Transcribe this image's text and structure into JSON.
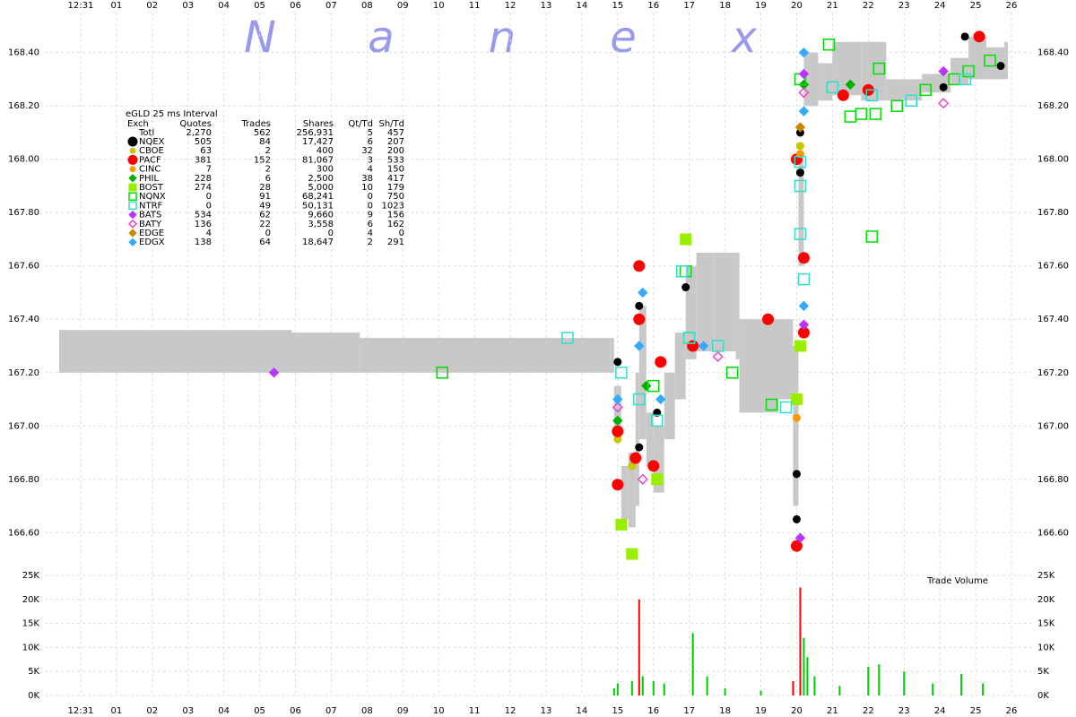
{
  "watermark": [
    "N",
    "a",
    "n",
    "e",
    "x"
  ],
  "table": {
    "title": "eGLD 25 ms Interval",
    "columns": [
      "Exch",
      "Quotes",
      "Trades",
      "Shares",
      "Qt/Td",
      "Sh/Td"
    ],
    "total": [
      "Totl",
      "2,270",
      "562",
      "256,931",
      "5",
      "457"
    ]
  },
  "chart_data": [
    {
      "type": "scatter",
      "xticks": [
        {
          "value": 0,
          "label": "12:31"
        },
        {
          "value": 1,
          "label": "01"
        },
        {
          "value": 2,
          "label": "02"
        },
        {
          "value": 3,
          "label": "03"
        },
        {
          "value": 4,
          "label": "04"
        },
        {
          "value": 5,
          "label": "05"
        },
        {
          "value": 6,
          "label": "06"
        },
        {
          "value": 7,
          "label": "07"
        },
        {
          "value": 8,
          "label": "08"
        },
        {
          "value": 9,
          "label": "09"
        },
        10,
        11,
        12,
        13,
        14,
        15,
        16,
        17,
        18,
        19,
        20,
        21,
        22,
        23,
        24,
        25,
        26
      ],
      "xlim": [
        -1,
        26.55
      ],
      "ylim": [
        166.48,
        168.53
      ],
      "yticks": [
        {
          "value": 166.6,
          "label": "166.60"
        },
        {
          "value": 166.8,
          "label": "166.80"
        },
        {
          "value": 167,
          "label": "167.00"
        },
        {
          "value": 167.2,
          "label": "167.20"
        },
        {
          "value": 167.4,
          "label": "167.40"
        },
        {
          "value": 167.6,
          "label": "167.60"
        },
        {
          "value": 167.8,
          "label": "167.80"
        },
        {
          "value": 168,
          "label": "168.00"
        },
        {
          "value": 168.2,
          "label": "168.20"
        },
        {
          "value": 168.4,
          "label": "168.40"
        }
      ],
      "grid": true,
      "band": {
        "color": "#c8c8c8",
        "x": [
          -0.6,
          5.9,
          7.8,
          14.8,
          14.9,
          15.1,
          15.3,
          15.5,
          15.6,
          15.8,
          16.0,
          16.3,
          16.6,
          16.9,
          17.2,
          17.7,
          18.3,
          18.4,
          19.5,
          19.9,
          20.05,
          20.2,
          20.6,
          21.0,
          21.8,
          22.5,
          23.5,
          24.3,
          24.8,
          25.3,
          25.8
        ],
        "lower": [
          167.2,
          167.2,
          167.2,
          167.2,
          166.95,
          166.65,
          166.62,
          166.7,
          166.95,
          166.85,
          166.75,
          166.95,
          167.1,
          167.25,
          167.28,
          167.28,
          167.25,
          167.05,
          167.1,
          166.7,
          167.6,
          168.2,
          168.22,
          168.24,
          168.22,
          168.22,
          168.25,
          168.28,
          168.3,
          168.3,
          168.3
        ],
        "upper": [
          167.36,
          167.35,
          167.33,
          167.33,
          167.15,
          166.85,
          166.9,
          167.2,
          167.45,
          167.05,
          167.0,
          167.2,
          167.35,
          167.6,
          167.65,
          167.65,
          167.65,
          167.4,
          167.4,
          167.3,
          168.0,
          168.4,
          168.36,
          168.44,
          168.44,
          168.3,
          168.32,
          168.38,
          168.46,
          168.42,
          168.44
        ]
      },
      "series": [
        {
          "name": "NQEX",
          "color": "#000000",
          "marker": "circle",
          "filled": true,
          "stats": [
            "505",
            "84",
            "17,427",
            "6",
            "207"
          ],
          "x": [
            15.0,
            15.6,
            15.6,
            16.1,
            16.9,
            20.0,
            20.0,
            20.1,
            20.1,
            24.1,
            25.7,
            24.7
          ],
          "values": [
            167.24,
            167.45,
            166.92,
            167.05,
            167.52,
            166.82,
            166.65,
            168.1,
            167.95,
            168.27,
            168.35,
            168.46
          ]
        },
        {
          "name": "CBOE",
          "color": "#c8c800",
          "marker": "circle",
          "filled": true,
          "stats": [
            "63",
            "2",
            "400",
            "32",
            "200"
          ],
          "x": [
            15.0,
            15.4,
            20.1
          ],
          "values": [
            166.95,
            166.85,
            168.05
          ]
        },
        {
          "name": "PACF",
          "color": "#ff0000",
          "marker": "circle",
          "filled": true,
          "stats": [
            "381",
            "152",
            "81,067",
            "3",
            "533"
          ],
          "x": [
            15.0,
            15.0,
            15.6,
            15.6,
            15.5,
            16.0,
            16.2,
            17.1,
            19.2,
            20.0,
            20.0,
            20.2,
            20.2,
            21.3,
            22.0,
            25.1
          ],
          "values": [
            166.98,
            166.78,
            167.6,
            167.4,
            166.88,
            166.85,
            167.24,
            167.3,
            167.4,
            168.0,
            166.55,
            167.63,
            167.35,
            168.24,
            168.26,
            168.46
          ]
        },
        {
          "name": "CINC",
          "color": "#ff9900",
          "marker": "circle",
          "filled": true,
          "stats": [
            "7",
            "2",
            "300",
            "4",
            "150"
          ],
          "x": [
            20.0,
            20.1
          ],
          "values": [
            167.03,
            168.02
          ]
        },
        {
          "name": "PHIL",
          "color": "#00b000",
          "marker": "diamond",
          "filled": true,
          "stats": [
            "228",
            "6",
            "2,500",
            "38",
            "417"
          ],
          "x": [
            15.0,
            15.8,
            20.2,
            21.5
          ],
          "values": [
            167.02,
            167.15,
            168.28,
            168.28
          ]
        },
        {
          "name": "BOST",
          "color": "#99ee00",
          "marker": "square",
          "filled": true,
          "stats": [
            "274",
            "28",
            "5,000",
            "10",
            "179"
          ],
          "x": [
            15.1,
            15.4,
            16.1,
            16.9,
            20.0,
            20.1
          ],
          "values": [
            166.63,
            166.52,
            166.8,
            167.7,
            167.1,
            167.3
          ]
        },
        {
          "name": "NQNX",
          "color": "#00dd00",
          "marker": "square",
          "filled": false,
          "stats": [
            "0",
            "91",
            "68,241",
            "0",
            "750"
          ],
          "x": [
            10.1,
            16.0,
            16.9,
            17.0,
            18.2,
            19.3,
            20.1,
            20.9,
            21.8,
            22.1,
            22.2,
            22.8,
            23.6,
            24.4,
            24.8,
            25.4,
            22.3,
            21.5
          ],
          "values": [
            167.2,
            167.15,
            167.58,
            167.33,
            167.2,
            167.08,
            168.3,
            168.43,
            168.17,
            167.71,
            168.17,
            168.2,
            168.26,
            168.3,
            168.33,
            168.37,
            168.34,
            168.16
          ]
        },
        {
          "name": "NTRF",
          "color": "#33ddcc",
          "marker": "square",
          "filled": false,
          "stats": [
            "0",
            "49",
            "50,131",
            "0",
            "1023"
          ],
          "x": [
            13.6,
            15.1,
            15.6,
            16.1,
            16.8,
            17.0,
            17.8,
            19.7,
            20.1,
            20.1,
            20.2,
            20.1,
            21.0,
            22.1,
            23.2,
            24.7
          ],
          "values": [
            167.33,
            167.2,
            167.1,
            167.02,
            167.58,
            167.33,
            167.3,
            167.07,
            167.9,
            167.72,
            167.55,
            167.99,
            168.27,
            168.24,
            168.22,
            168.3
          ]
        },
        {
          "name": "BATS",
          "color": "#bb33ff",
          "marker": "diamond",
          "filled": true,
          "stats": [
            "534",
            "62",
            "9,660",
            "9",
            "156"
          ],
          "x": [
            5.4,
            20.1,
            20.2,
            20.2,
            24.1
          ],
          "values": [
            167.2,
            166.58,
            167.38,
            168.32,
            168.33
          ]
        },
        {
          "name": "BATY",
          "color": "#ee44cc",
          "marker": "diamond",
          "filled": false,
          "stats": [
            "136",
            "22",
            "3,558",
            "6",
            "162"
          ],
          "x": [
            15.0,
            15.7,
            17.8,
            20.2,
            24.1
          ],
          "values": [
            167.07,
            166.8,
            167.26,
            168.25,
            168.21
          ]
        },
        {
          "name": "EDGE",
          "color": "#cc8800",
          "marker": "diamond",
          "filled": true,
          "stats": [
            "4",
            "0",
            "0",
            "4",
            "0"
          ],
          "x": [
            20.1
          ],
          "values": [
            168.12
          ]
        },
        {
          "name": "EDGX",
          "color": "#33aaff",
          "marker": "diamond",
          "filled": true,
          "stats": [
            "138",
            "64",
            "18,647",
            "2",
            "291"
          ],
          "x": [
            15.0,
            15.6,
            15.7,
            16.2,
            17.4,
            20.2,
            20.2,
            20.2
          ],
          "values": [
            167.1,
            167.3,
            167.5,
            167.1,
            167.3,
            168.4,
            168.18,
            167.45
          ]
        }
      ]
    },
    {
      "type": "bar",
      "annotation": "Trade Volume",
      "ylim": [
        0,
        25000
      ],
      "yticks": [
        {
          "value": 0,
          "label": "0K"
        },
        {
          "value": 5000,
          "label": "5K"
        },
        {
          "value": 10000,
          "label": "10K"
        },
        {
          "value": 15000,
          "label": "15K"
        },
        {
          "value": 20000,
          "label": "20K"
        },
        {
          "value": 25000,
          "label": "25K"
        }
      ],
      "series": [
        {
          "color": "#00cc00",
          "x": [
            14.9,
            15.0,
            15.4,
            15.7,
            16.0,
            16.3,
            17.1,
            17.5,
            18.0,
            19.0,
            20.2,
            20.3,
            20.5,
            21.2,
            22.0,
            22.3,
            23.0,
            23.8,
            24.6,
            25.2
          ],
          "values": [
            1500,
            2500,
            3000,
            4000,
            3000,
            2500,
            13000,
            4000,
            1500,
            1000,
            12000,
            8000,
            4000,
            2000,
            6000,
            6500,
            5000,
            2500,
            4500,
            2500
          ]
        },
        {
          "color": "#ff0000",
          "x": [
            15.6,
            19.9,
            20.1
          ],
          "values": [
            20000,
            3000,
            22500
          ]
        }
      ]
    }
  ]
}
